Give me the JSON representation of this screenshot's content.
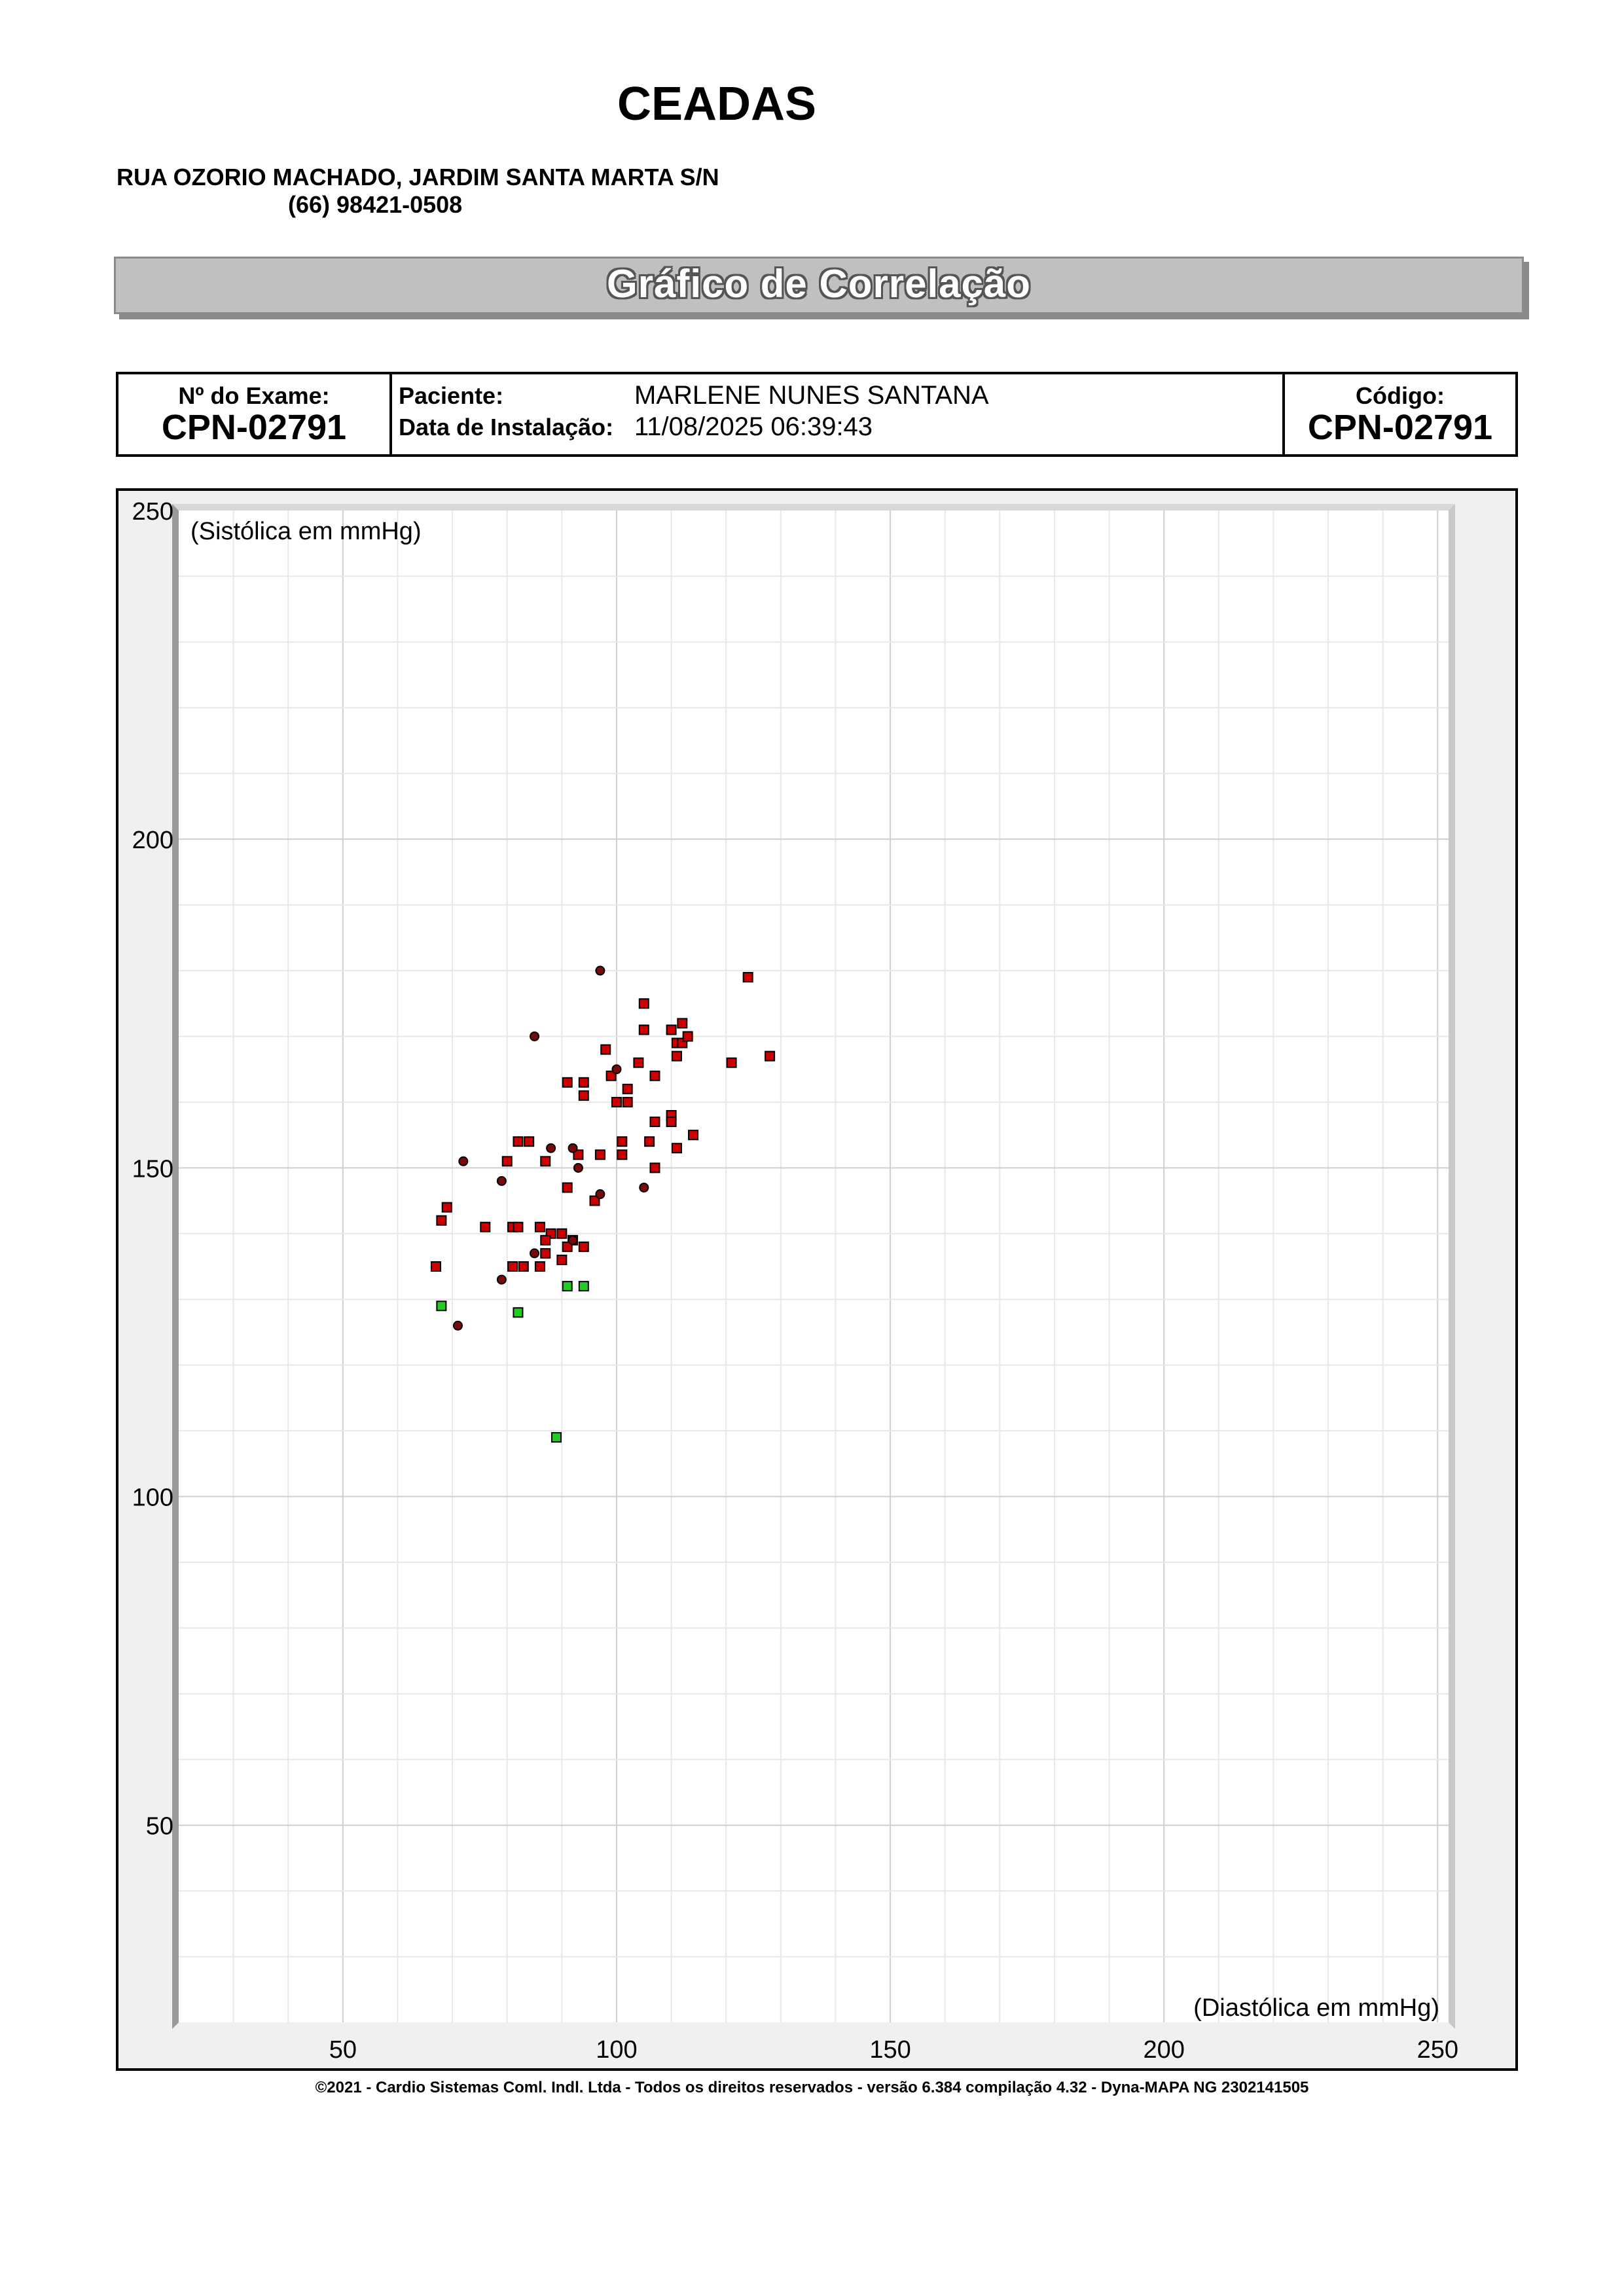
{
  "header": {
    "clinic_name": "CEADAS",
    "address": "RUA OZORIO MACHADO, JARDIM SANTA MARTA S/N",
    "phone": "(66) 98421-0508",
    "title": "Gráfico de Correlação"
  },
  "info": {
    "exam_label": "Nº do Exame:",
    "exam_value": "CPN-02791",
    "patient_label": "Paciente:",
    "patient_value": "MARLENE NUNES SANTANA",
    "install_label": "Data de Instalação:",
    "install_value": "11/08/2025 06:39:43",
    "code_label": "Código:",
    "code_value": "CPN-02791"
  },
  "chart_data": {
    "type": "scatter",
    "ylabel": "(Sistólica em mmHg)",
    "xlabel": "(Diastólica em mmHg)",
    "xlim": [
      20,
      252
    ],
    "ylim": [
      20,
      250
    ],
    "xticks": [
      50,
      100,
      150,
      200,
      250
    ],
    "yticks": [
      250,
      200,
      150,
      100,
      50
    ],
    "grid": true,
    "colors": {
      "red": "#cc0000",
      "green": "#22cc22",
      "dark": "#7a0a0a"
    },
    "series": [
      {
        "marker": "square",
        "color": "red",
        "points": [
          [
            105,
            175
          ],
          [
            124,
            179
          ],
          [
            105,
            171
          ],
          [
            110,
            171
          ],
          [
            112,
            172
          ],
          [
            111,
            169
          ],
          [
            112,
            169
          ],
          [
            113,
            170
          ],
          [
            128,
            167
          ],
          [
            121,
            166
          ],
          [
            98,
            168
          ],
          [
            104,
            166
          ],
          [
            111,
            167
          ],
          [
            107,
            164
          ],
          [
            99,
            164
          ],
          [
            94,
            163
          ],
          [
            91,
            163
          ],
          [
            102,
            162
          ],
          [
            94,
            161
          ],
          [
            100,
            160
          ],
          [
            102,
            160
          ],
          [
            110,
            158
          ],
          [
            110,
            157
          ],
          [
            107,
            157
          ],
          [
            114,
            155
          ],
          [
            106,
            154
          ],
          [
            101,
            154
          ],
          [
            82,
            154
          ],
          [
            84,
            154
          ],
          [
            111,
            153
          ],
          [
            93,
            152
          ],
          [
            97,
            152
          ],
          [
            101,
            152
          ],
          [
            87,
            151
          ],
          [
            80,
            151
          ],
          [
            107,
            150
          ],
          [
            91,
            147
          ],
          [
            96,
            145
          ],
          [
            69,
            144
          ],
          [
            68,
            142
          ],
          [
            76,
            141
          ],
          [
            81,
            141
          ],
          [
            82,
            141
          ],
          [
            86,
            141
          ],
          [
            88,
            140
          ],
          [
            90,
            140
          ],
          [
            87,
            139
          ],
          [
            92,
            139
          ],
          [
            91,
            138
          ],
          [
            94,
            138
          ],
          [
            87,
            137
          ],
          [
            90,
            136
          ],
          [
            67,
            135
          ],
          [
            81,
            135
          ],
          [
            83,
            135
          ],
          [
            86,
            135
          ]
        ]
      },
      {
        "marker": "circle",
        "color": "dark",
        "points": [
          [
            97,
            180
          ],
          [
            85,
            170
          ],
          [
            100,
            165
          ],
          [
            72,
            151
          ],
          [
            92,
            153
          ],
          [
            88,
            153
          ],
          [
            93,
            150
          ],
          [
            79,
            148
          ],
          [
            97,
            146
          ],
          [
            105,
            147
          ],
          [
            92,
            139
          ],
          [
            85,
            137
          ],
          [
            79,
            133
          ],
          [
            71,
            126
          ]
        ]
      },
      {
        "marker": "square",
        "color": "green",
        "points": [
          [
            68,
            129
          ],
          [
            82,
            128
          ],
          [
            91,
            132
          ],
          [
            94,
            132
          ],
          [
            89,
            109
          ]
        ]
      }
    ]
  },
  "footer": "©2021 - Cardio Sistemas Coml. Indl. Ltda - Todos os direitos reservados - versão 6.384 compilação 4.32 - Dyna-MAPA NG 2302141505"
}
